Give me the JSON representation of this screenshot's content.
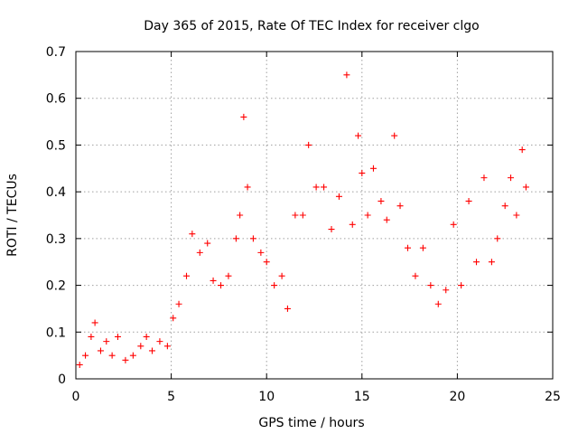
{
  "chart_data": {
    "type": "scatter",
    "title": "Day 365 of 2015, Rate Of TEC Index for receiver clgo",
    "xlabel": "GPS time / hours",
    "ylabel": "ROTI / TECUs",
    "xlim": [
      0,
      25
    ],
    "ylim": [
      0,
      0.7
    ],
    "xticks": [
      "0",
      "5",
      "10",
      "15",
      "20",
      "25"
    ],
    "yticks": [
      "0",
      "0.1",
      "0.2",
      "0.3",
      "0.4",
      "0.5",
      "0.6",
      "0.7"
    ],
    "grid": true,
    "marker": "+",
    "color": "#ff0000",
    "series": [
      {
        "name": "",
        "points": [
          [
            0.2,
            0.03
          ],
          [
            0.5,
            0.05
          ],
          [
            0.8,
            0.09
          ],
          [
            1.0,
            0.12
          ],
          [
            1.3,
            0.06
          ],
          [
            1.6,
            0.08
          ],
          [
            1.9,
            0.05
          ],
          [
            2.2,
            0.09
          ],
          [
            2.6,
            0.04
          ],
          [
            3.0,
            0.05
          ],
          [
            3.4,
            0.07
          ],
          [
            3.7,
            0.09
          ],
          [
            4.0,
            0.06
          ],
          [
            4.4,
            0.08
          ],
          [
            4.8,
            0.07
          ],
          [
            5.1,
            0.13
          ],
          [
            5.4,
            0.16
          ],
          [
            5.8,
            0.22
          ],
          [
            6.1,
            0.31
          ],
          [
            6.5,
            0.27
          ],
          [
            6.9,
            0.29
          ],
          [
            7.2,
            0.21
          ],
          [
            7.6,
            0.2
          ],
          [
            8.0,
            0.22
          ],
          [
            8.4,
            0.3
          ],
          [
            8.6,
            0.35
          ],
          [
            8.8,
            0.56
          ],
          [
            9.0,
            0.41
          ],
          [
            9.3,
            0.3
          ],
          [
            9.7,
            0.27
          ],
          [
            10.0,
            0.25
          ],
          [
            10.4,
            0.2
          ],
          [
            10.8,
            0.22
          ],
          [
            11.1,
            0.15
          ],
          [
            11.5,
            0.35
          ],
          [
            11.9,
            0.35
          ],
          [
            12.2,
            0.5
          ],
          [
            12.6,
            0.41
          ],
          [
            13.0,
            0.41
          ],
          [
            13.4,
            0.32
          ],
          [
            13.8,
            0.39
          ],
          [
            14.2,
            0.65
          ],
          [
            14.5,
            0.33
          ],
          [
            14.8,
            0.52
          ],
          [
            15.0,
            0.44
          ],
          [
            15.3,
            0.35
          ],
          [
            15.6,
            0.45
          ],
          [
            16.0,
            0.38
          ],
          [
            16.3,
            0.34
          ],
          [
            16.7,
            0.52
          ],
          [
            17.0,
            0.37
          ],
          [
            17.4,
            0.28
          ],
          [
            17.8,
            0.22
          ],
          [
            18.2,
            0.28
          ],
          [
            18.6,
            0.2
          ],
          [
            19.0,
            0.16
          ],
          [
            19.4,
            0.19
          ],
          [
            19.8,
            0.33
          ],
          [
            20.2,
            0.2
          ],
          [
            20.6,
            0.38
          ],
          [
            21.0,
            0.25
          ],
          [
            21.4,
            0.43
          ],
          [
            21.8,
            0.25
          ],
          [
            22.1,
            0.3
          ],
          [
            22.5,
            0.37
          ],
          [
            22.8,
            0.43
          ],
          [
            23.1,
            0.35
          ],
          [
            23.4,
            0.49
          ],
          [
            23.6,
            0.41
          ]
        ]
      }
    ]
  }
}
